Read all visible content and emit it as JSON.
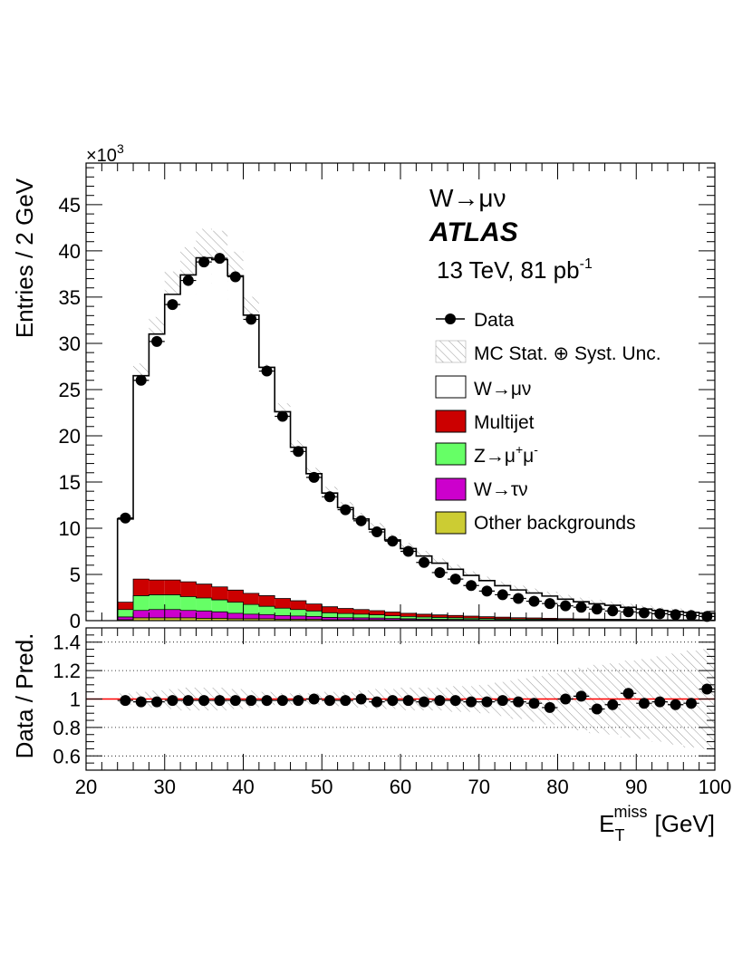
{
  "chart_data": {
    "type": "bar",
    "stacked": true,
    "title": "",
    "xlabel": "E_T^miss [GeV]",
    "xlabel_main": "E",
    "xlabel_sub": "T",
    "xlabel_sup": "miss",
    "xlabel_unit": "[GeV]",
    "ylabel": "Entries / 2 GeV",
    "y_multiplier_base": "×10",
    "y_multiplier_exp": "3",
    "xlim": [
      20,
      100
    ],
    "ylim": [
      0,
      49.5
    ],
    "x_ticks": [
      "20",
      "30",
      "40",
      "50",
      "60",
      "70",
      "80",
      "90",
      "100"
    ],
    "y_ticks": [
      "0",
      "5",
      "10",
      "15",
      "20",
      "25",
      "30",
      "35",
      "40",
      "45"
    ],
    "bin_edges_start": 24,
    "bin_width": 2,
    "annotations": {
      "process": "W→μν",
      "experiment": "ATLAS",
      "energy": "13 TeV, 81 pb",
      "lumi_exp": "-1"
    },
    "legend": [
      {
        "key": "data",
        "label": "Data"
      },
      {
        "key": "unc",
        "label": "MC Stat. ⊕ Syst. Unc."
      },
      {
        "key": "wmunu",
        "label": "W→μν"
      },
      {
        "key": "multijet",
        "label": "Multijet"
      },
      {
        "key": "zmumu",
        "label": "Z→μ",
        "sup1": "+",
        "mid": "μ",
        "sup2": "-"
      },
      {
        "key": "wtaunu",
        "label": "W→τν"
      },
      {
        "key": "other",
        "label": "Other backgrounds"
      }
    ],
    "colors": {
      "wmunu": "#ffffff",
      "multijet": "#cc0000",
      "zmumu": "#66ff66",
      "wtaunu": "#cc00cc",
      "other": "#cccc33",
      "ratio_line": "#ff0000"
    },
    "series": [
      {
        "name": "Other backgrounds",
        "key": "other",
        "values": [
          0.1,
          0.3,
          0.3,
          0.3,
          0.3,
          0.25,
          0.25,
          0.2,
          0.2,
          0.2,
          0.15,
          0.15,
          0.15,
          0.1,
          0.1,
          0.1,
          0.1,
          0.08,
          0.08,
          0.07,
          0.06,
          0.05,
          0.05,
          0.04,
          0.04,
          0.03,
          0.03,
          0.03,
          0.02,
          0.02,
          0.02,
          0.02,
          0.02,
          0.01,
          0.01,
          0.01,
          0.01,
          0.01
        ]
      },
      {
        "name": "W→τν",
        "key": "wtaunu",
        "values": [
          0.3,
          0.8,
          0.9,
          0.9,
          0.8,
          0.8,
          0.7,
          0.6,
          0.5,
          0.45,
          0.4,
          0.35,
          0.3,
          0.25,
          0.22,
          0.2,
          0.18,
          0.15,
          0.12,
          0.1,
          0.09,
          0.08,
          0.07,
          0.06,
          0.05,
          0.04,
          0.04,
          0.03,
          0.03,
          0.02,
          0.02,
          0.02,
          0.02,
          0.01,
          0.01,
          0.01,
          0.01,
          0.01
        ]
      },
      {
        "name": "Z→μ+μ-",
        "key": "zmumu",
        "values": [
          0.8,
          1.6,
          1.6,
          1.6,
          1.5,
          1.4,
          1.3,
          1.2,
          1.05,
          0.9,
          0.8,
          0.7,
          0.6,
          0.5,
          0.45,
          0.4,
          0.35,
          0.3,
          0.25,
          0.22,
          0.2,
          0.18,
          0.15,
          0.13,
          0.11,
          0.1,
          0.09,
          0.08,
          0.07,
          0.06,
          0.05,
          0.05,
          0.04,
          0.04,
          0.03,
          0.03,
          0.03,
          0.02
        ]
      },
      {
        "name": "Multijet",
        "key": "multijet",
        "values": [
          0.8,
          1.8,
          1.6,
          1.6,
          1.6,
          1.5,
          1.4,
          1.3,
          1.2,
          1.15,
          1.05,
          0.95,
          0.75,
          0.65,
          0.55,
          0.5,
          0.45,
          0.4,
          0.35,
          0.3,
          0.27,
          0.25,
          0.22,
          0.2,
          0.18,
          0.15,
          0.13,
          0.12,
          0.1,
          0.09,
          0.08,
          0.07,
          0.06,
          0.05,
          0.05,
          0.04,
          0.04,
          0.03
        ]
      },
      {
        "name": "W→μν",
        "key": "wmunu",
        "values": [
          9.0,
          22.0,
          26.6,
          30.9,
          33.2,
          35.3,
          35.4,
          34.0,
          30.1,
          24.7,
          20.2,
          16.6,
          14.1,
          12.3,
          10.9,
          9.8,
          8.8,
          7.8,
          7.0,
          6.3,
          5.6,
          5.0,
          4.4,
          3.9,
          3.4,
          3.0,
          2.7,
          2.4,
          2.1,
          1.85,
          1.65,
          1.5,
          1.3,
          1.15,
          1.0,
          0.9,
          0.8,
          0.72
        ]
      }
    ],
    "total": [
      11.0,
      26.5,
      31.0,
      35.3,
      37.4,
      39.25,
      39.05,
      37.3,
      33.05,
      26.4,
      22.6,
      18.75,
      15.9,
      13.8,
      12.22,
      11.0,
      9.88,
      8.73,
      7.8,
      6.99,
      6.22,
      5.56,
      4.89,
      4.33,
      3.78,
      3.32,
      2.99,
      2.66,
      2.32,
      2.04,
      1.82,
      1.66,
      1.44,
      1.26,
      1.1,
      0.99,
      0.89,
      0.79
    ],
    "unc_frac": [
      0.04,
      0.05,
      0.06,
      0.07,
      0.08,
      0.08,
      0.08,
      0.07,
      0.06,
      0.05,
      0.04,
      0.04,
      0.04,
      0.05,
      0.05,
      0.06,
      0.07,
      0.07,
      0.08,
      0.08,
      0.08,
      0.09,
      0.09,
      0.1,
      0.12,
      0.14,
      0.16,
      0.18,
      0.2,
      0.22,
      0.24,
      0.25,
      0.27,
      0.28,
      0.3,
      0.32,
      0.34,
      0.35
    ],
    "data": {
      "x": [
        25,
        27,
        29,
        31,
        33,
        35,
        37,
        39,
        41,
        43,
        45,
        47,
        49,
        51,
        53,
        55,
        57,
        59,
        61,
        63,
        65,
        67,
        69,
        71,
        73,
        75,
        77,
        79,
        81,
        83,
        85,
        87,
        89,
        91,
        93,
        95,
        97,
        99
      ],
      "y": [
        11.1,
        26.0,
        30.2,
        34.2,
        36.8,
        38.8,
        39.2,
        37.2,
        32.6,
        27.0,
        22.1,
        18.3,
        15.5,
        13.4,
        12.0,
        10.8,
        9.6,
        8.6,
        7.5,
        6.3,
        5.2,
        4.5,
        3.8,
        3.2,
        2.8,
        2.4,
        2.1,
        1.85,
        1.6,
        1.45,
        1.25,
        1.05,
        0.95,
        0.85,
        0.75,
        0.65,
        0.55,
        0.45
      ]
    },
    "ratio": {
      "ylabel": "Data / Pred.",
      "ylim": [
        0.5,
        1.5
      ],
      "y_ticks": [
        "0.6",
        "0.8",
        "1",
        "1.2",
        "1.4"
      ],
      "gridlines": [
        0.6,
        0.8,
        1.0,
        1.2,
        1.4
      ],
      "reference": 1,
      "y": [
        0.99,
        0.98,
        0.98,
        0.99,
        0.99,
        0.99,
        0.99,
        0.99,
        0.99,
        0.99,
        0.99,
        0.99,
        1.0,
        0.99,
        0.99,
        1.0,
        0.98,
        0.99,
        0.99,
        0.98,
        0.99,
        0.99,
        0.98,
        0.98,
        0.99,
        0.98,
        0.97,
        0.94,
        1.0,
        1.02,
        0.93,
        0.96,
        1.04,
        0.97,
        0.98,
        0.96,
        0.97,
        1.07
      ],
      "err": [
        0.005,
        0.005,
        0.005,
        0.005,
        0.005,
        0.005,
        0.005,
        0.005,
        0.005,
        0.005,
        0.005,
        0.005,
        0.006,
        0.006,
        0.007,
        0.007,
        0.008,
        0.008,
        0.009,
        0.009,
        0.01,
        0.011,
        0.012,
        0.013,
        0.014,
        0.015,
        0.016,
        0.017,
        0.018,
        0.02,
        0.021,
        0.023,
        0.025,
        0.026,
        0.028,
        0.03,
        0.032,
        0.034
      ]
    }
  }
}
